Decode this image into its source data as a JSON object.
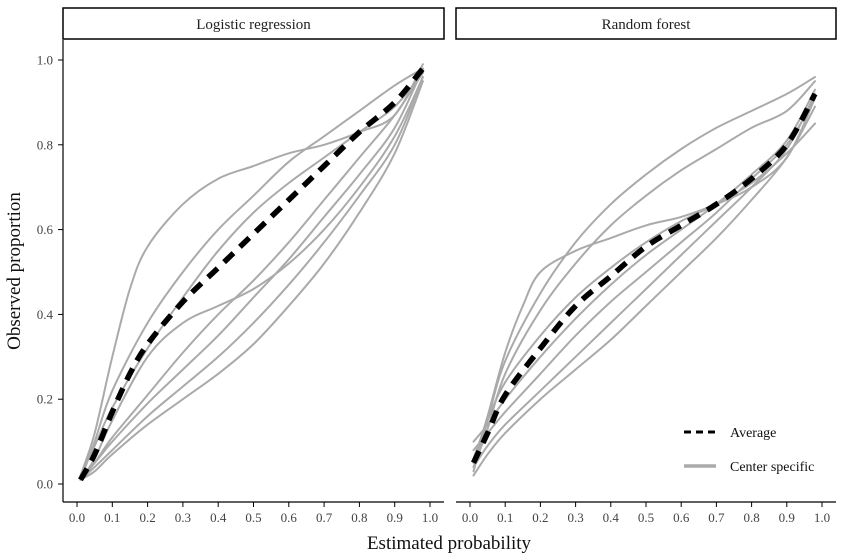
{
  "chart_data": {
    "type": "line",
    "xlabel": "Estimated probability",
    "ylabel": "Observed proportion",
    "xlim": [
      0,
      1
    ],
    "ylim": [
      0,
      1
    ],
    "xticks": [
      "0.0",
      "0.1",
      "0.2",
      "0.3",
      "0.4",
      "0.5",
      "0.6",
      "0.7",
      "0.8",
      "0.9",
      "1.0"
    ],
    "yticks": [
      "0.0",
      "0.2",
      "0.4",
      "0.6",
      "0.8",
      "1.0"
    ],
    "grid": false,
    "legend_position": "bottom-right",
    "legend": [
      {
        "label": "Average",
        "style": "dashed",
        "color": "#000000"
      },
      {
        "label": "Center specific",
        "style": "solid",
        "color": "#aaaaaa"
      }
    ],
    "colors": {
      "average": "#000000",
      "center": "#aaaaaa"
    },
    "panels": [
      {
        "title": "Logistic regression",
        "center_curves": [
          [
            [
              0.01,
              0.02
            ],
            [
              0.05,
              0.12
            ],
            [
              0.1,
              0.3
            ],
            [
              0.15,
              0.46
            ],
            [
              0.2,
              0.56
            ],
            [
              0.3,
              0.66
            ],
            [
              0.4,
              0.72
            ],
            [
              0.5,
              0.75
            ],
            [
              0.6,
              0.78
            ],
            [
              0.7,
              0.8
            ],
            [
              0.8,
              0.83
            ],
            [
              0.9,
              0.87
            ],
            [
              0.98,
              0.99
            ]
          ],
          [
            [
              0.01,
              0.01
            ],
            [
              0.05,
              0.1
            ],
            [
              0.1,
              0.22
            ],
            [
              0.2,
              0.38
            ],
            [
              0.3,
              0.5
            ],
            [
              0.4,
              0.6
            ],
            [
              0.5,
              0.68
            ],
            [
              0.6,
              0.76
            ],
            [
              0.7,
              0.82
            ],
            [
              0.8,
              0.88
            ],
            [
              0.9,
              0.94
            ],
            [
              0.98,
              0.98
            ]
          ],
          [
            [
              0.01,
              0.02
            ],
            [
              0.05,
              0.09
            ],
            [
              0.1,
              0.18
            ],
            [
              0.2,
              0.32
            ],
            [
              0.3,
              0.44
            ],
            [
              0.4,
              0.55
            ],
            [
              0.5,
              0.64
            ],
            [
              0.6,
              0.71
            ],
            [
              0.7,
              0.77
            ],
            [
              0.8,
              0.83
            ],
            [
              0.9,
              0.89
            ],
            [
              0.98,
              0.97
            ]
          ],
          [
            [
              0.01,
              0.01
            ],
            [
              0.05,
              0.06
            ],
            [
              0.1,
              0.15
            ],
            [
              0.2,
              0.3
            ],
            [
              0.3,
              0.38
            ],
            [
              0.4,
              0.42
            ],
            [
              0.5,
              0.46
            ],
            [
              0.6,
              0.52
            ],
            [
              0.7,
              0.6
            ],
            [
              0.8,
              0.7
            ],
            [
              0.9,
              0.82
            ],
            [
              0.98,
              0.96
            ]
          ],
          [
            [
              0.01,
              0.01
            ],
            [
              0.05,
              0.05
            ],
            [
              0.1,
              0.11
            ],
            [
              0.2,
              0.21
            ],
            [
              0.3,
              0.31
            ],
            [
              0.4,
              0.4
            ],
            [
              0.5,
              0.48
            ],
            [
              0.6,
              0.57
            ],
            [
              0.7,
              0.67
            ],
            [
              0.8,
              0.77
            ],
            [
              0.9,
              0.87
            ],
            [
              0.98,
              0.97
            ]
          ],
          [
            [
              0.01,
              0.02
            ],
            [
              0.05,
              0.05
            ],
            [
              0.1,
              0.1
            ],
            [
              0.2,
              0.19
            ],
            [
              0.3,
              0.27
            ],
            [
              0.4,
              0.35
            ],
            [
              0.5,
              0.44
            ],
            [
              0.6,
              0.53
            ],
            [
              0.7,
              0.63
            ],
            [
              0.8,
              0.73
            ],
            [
              0.9,
              0.84
            ],
            [
              0.98,
              0.98
            ]
          ],
          [
            [
              0.01,
              0.01
            ],
            [
              0.05,
              0.04
            ],
            [
              0.1,
              0.08
            ],
            [
              0.2,
              0.16
            ],
            [
              0.3,
              0.23
            ],
            [
              0.4,
              0.3
            ],
            [
              0.5,
              0.38
            ],
            [
              0.6,
              0.47
            ],
            [
              0.7,
              0.57
            ],
            [
              0.8,
              0.68
            ],
            [
              0.9,
              0.8
            ],
            [
              0.98,
              0.96
            ]
          ],
          [
            [
              0.01,
              0.01
            ],
            [
              0.05,
              0.03
            ],
            [
              0.1,
              0.07
            ],
            [
              0.2,
              0.14
            ],
            [
              0.3,
              0.2
            ],
            [
              0.4,
              0.26
            ],
            [
              0.5,
              0.33
            ],
            [
              0.6,
              0.42
            ],
            [
              0.7,
              0.52
            ],
            [
              0.8,
              0.64
            ],
            [
              0.9,
              0.78
            ],
            [
              0.98,
              0.95
            ]
          ]
        ],
        "average": [
          [
            0.01,
            0.01
          ],
          [
            0.05,
            0.07
          ],
          [
            0.1,
            0.17
          ],
          [
            0.15,
            0.26
          ],
          [
            0.2,
            0.33
          ],
          [
            0.3,
            0.43
          ],
          [
            0.4,
            0.51
          ],
          [
            0.5,
            0.59
          ],
          [
            0.6,
            0.67
          ],
          [
            0.7,
            0.75
          ],
          [
            0.8,
            0.83
          ],
          [
            0.9,
            0.9
          ],
          [
            0.98,
            0.98
          ]
        ]
      },
      {
        "title": "Random forest",
        "center_curves": [
          [
            [
              0.01,
              0.03
            ],
            [
              0.05,
              0.15
            ],
            [
              0.1,
              0.29
            ],
            [
              0.2,
              0.45
            ],
            [
              0.3,
              0.57
            ],
            [
              0.4,
              0.66
            ],
            [
              0.5,
              0.73
            ],
            [
              0.6,
              0.79
            ],
            [
              0.7,
              0.84
            ],
            [
              0.8,
              0.88
            ],
            [
              0.9,
              0.92
            ],
            [
              0.98,
              0.96
            ]
          ],
          [
            [
              0.01,
              0.04
            ],
            [
              0.05,
              0.13
            ],
            [
              0.1,
              0.26
            ],
            [
              0.2,
              0.41
            ],
            [
              0.3,
              0.52
            ],
            [
              0.4,
              0.61
            ],
            [
              0.5,
              0.68
            ],
            [
              0.6,
              0.74
            ],
            [
              0.7,
              0.79
            ],
            [
              0.8,
              0.84
            ],
            [
              0.9,
              0.88
            ],
            [
              0.98,
              0.95
            ]
          ],
          [
            [
              0.01,
              0.05
            ],
            [
              0.05,
              0.16
            ],
            [
              0.1,
              0.31
            ],
            [
              0.15,
              0.42
            ],
            [
              0.2,
              0.5
            ],
            [
              0.3,
              0.55
            ],
            [
              0.4,
              0.58
            ],
            [
              0.5,
              0.61
            ],
            [
              0.6,
              0.63
            ],
            [
              0.7,
              0.66
            ],
            [
              0.8,
              0.7
            ],
            [
              0.9,
              0.77
            ],
            [
              0.98,
              0.91
            ]
          ],
          [
            [
              0.01,
              0.06
            ],
            [
              0.05,
              0.15
            ],
            [
              0.1,
              0.24
            ],
            [
              0.2,
              0.35
            ],
            [
              0.3,
              0.44
            ],
            [
              0.4,
              0.51
            ],
            [
              0.5,
              0.57
            ],
            [
              0.6,
              0.62
            ],
            [
              0.7,
              0.66
            ],
            [
              0.8,
              0.71
            ],
            [
              0.9,
              0.78
            ],
            [
              0.98,
              0.85
            ]
          ],
          [
            [
              0.01,
              0.1
            ],
            [
              0.05,
              0.14
            ],
            [
              0.1,
              0.2
            ],
            [
              0.2,
              0.3
            ],
            [
              0.3,
              0.39
            ],
            [
              0.4,
              0.47
            ],
            [
              0.5,
              0.54
            ],
            [
              0.6,
              0.6
            ],
            [
              0.7,
              0.66
            ],
            [
              0.8,
              0.73
            ],
            [
              0.9,
              0.81
            ],
            [
              0.98,
              0.93
            ]
          ],
          [
            [
              0.01,
              0.08
            ],
            [
              0.05,
              0.12
            ],
            [
              0.1,
              0.17
            ],
            [
              0.2,
              0.26
            ],
            [
              0.3,
              0.35
            ],
            [
              0.4,
              0.43
            ],
            [
              0.5,
              0.5
            ],
            [
              0.6,
              0.57
            ],
            [
              0.7,
              0.64
            ],
            [
              0.8,
              0.72
            ],
            [
              0.9,
              0.8
            ],
            [
              0.98,
              0.91
            ]
          ],
          [
            [
              0.01,
              0.04
            ],
            [
              0.05,
              0.09
            ],
            [
              0.1,
              0.14
            ],
            [
              0.2,
              0.22
            ],
            [
              0.3,
              0.3
            ],
            [
              0.4,
              0.38
            ],
            [
              0.5,
              0.46
            ],
            [
              0.6,
              0.54
            ],
            [
              0.7,
              0.62
            ],
            [
              0.8,
              0.7
            ],
            [
              0.9,
              0.79
            ],
            [
              0.98,
              0.92
            ]
          ],
          [
            [
              0.01,
              0.02
            ],
            [
              0.05,
              0.07
            ],
            [
              0.1,
              0.12
            ],
            [
              0.2,
              0.2
            ],
            [
              0.3,
              0.27
            ],
            [
              0.4,
              0.34
            ],
            [
              0.5,
              0.42
            ],
            [
              0.6,
              0.5
            ],
            [
              0.7,
              0.58
            ],
            [
              0.8,
              0.67
            ],
            [
              0.9,
              0.77
            ],
            [
              0.98,
              0.89
            ]
          ]
        ],
        "average": [
          [
            0.01,
            0.05
          ],
          [
            0.05,
            0.12
          ],
          [
            0.1,
            0.21
          ],
          [
            0.2,
            0.32
          ],
          [
            0.3,
            0.42
          ],
          [
            0.4,
            0.49
          ],
          [
            0.5,
            0.56
          ],
          [
            0.6,
            0.61
          ],
          [
            0.7,
            0.66
          ],
          [
            0.8,
            0.72
          ],
          [
            0.9,
            0.8
          ],
          [
            0.98,
            0.92
          ]
        ]
      }
    ]
  }
}
